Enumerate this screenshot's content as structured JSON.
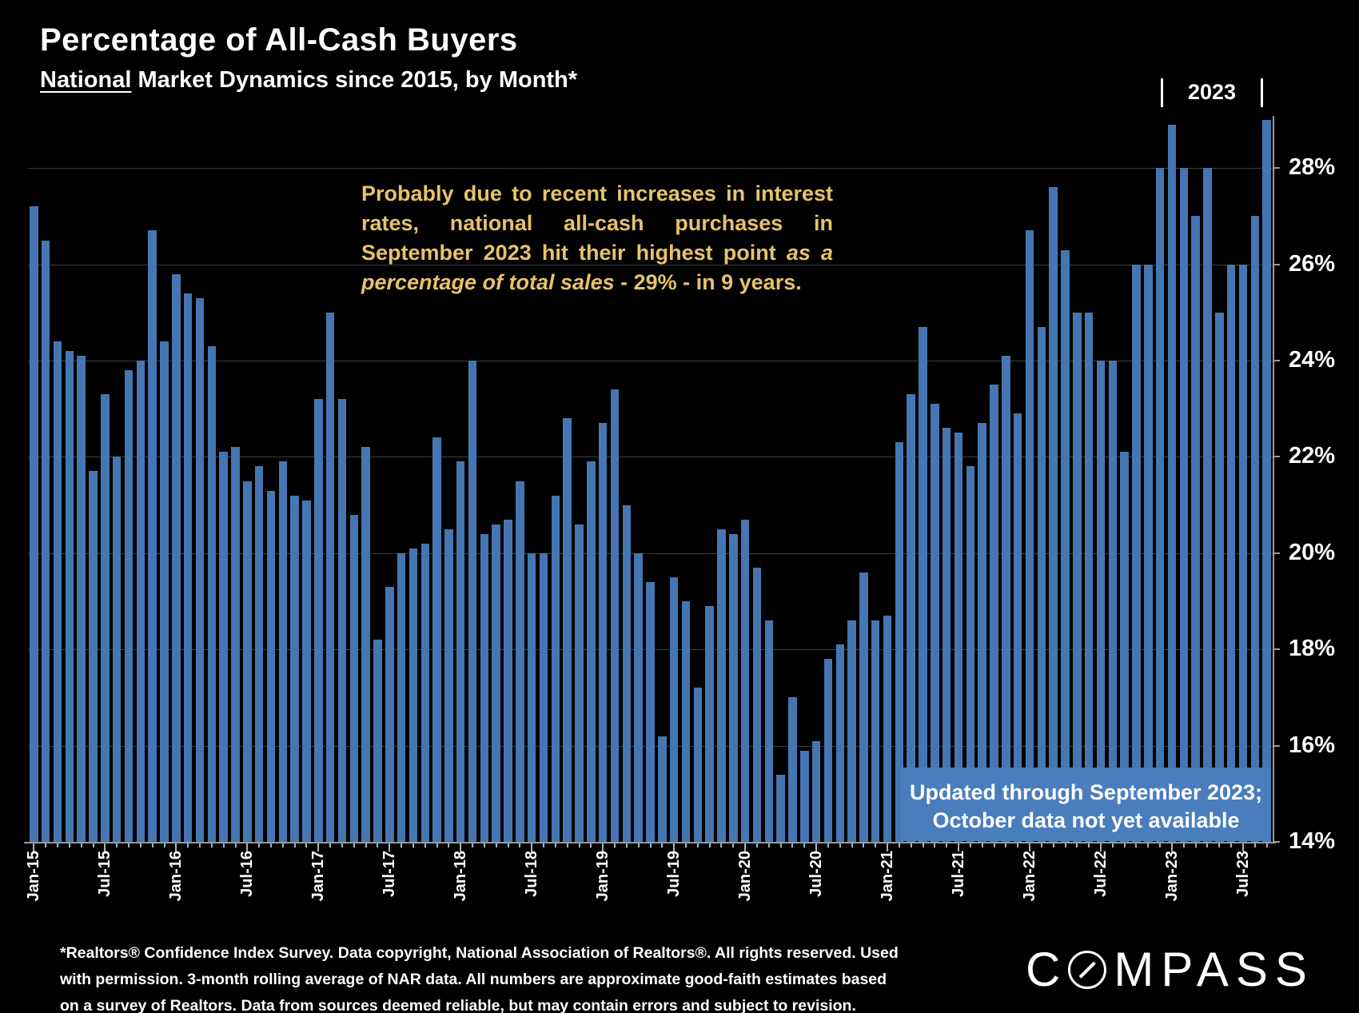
{
  "slide": {
    "title": "Percentage of All-Cash Buyers",
    "subtitle": {
      "underlined": "National",
      "rest": " Market Dynamics since 2015, by Month*"
    },
    "annotation": {
      "part1": "Probably due to recent increases in interest rates, national all-cash purchases in September 2023 hit their highest point ",
      "italic": "as a percentage of total sales",
      "part2": " - 29% - in 9 years."
    },
    "year_marker": "2023",
    "callout": {
      "line1": "Updated through September 2023;",
      "line2": "October data not yet available"
    },
    "footnote_lines": [
      "*Realtors® Confidence Index Survey. Data copyright, National Association of Realtors®. All rights reserved. Used",
      "with permission. 3-month rolling average of NAR data. All numbers are approximate good-faith estimates based",
      "on a survey of Realtors. Data from sources deemed reliable, but may contain errors and subject to revision."
    ],
    "logo": {
      "prefix": "C",
      "suffix": "MPASS",
      "full": "COMPASS"
    }
  },
  "colors": {
    "background": "#000000",
    "bar": "#4676b2",
    "callout_box": "#4a7dbd",
    "annotation_text": "#e6c369",
    "text": "#ffffff",
    "gridline": "#3f3f3f",
    "axis": "#9a9a9a"
  },
  "chart_data": {
    "type": "bar",
    "title": "Percentage of All-Cash Buyers",
    "xlabel": "",
    "ylabel": "",
    "ylim": [
      14,
      29.2
    ],
    "grid": "horizontal, every 2% from 16% to 28%",
    "legend": "none",
    "y_ticks": [
      {
        "value": 14,
        "label": "14%"
      },
      {
        "value": 16,
        "label": "16%"
      },
      {
        "value": 18,
        "label": "18%"
      },
      {
        "value": 20,
        "label": "20%"
      },
      {
        "value": 22,
        "label": "22%"
      },
      {
        "value": 24,
        "label": "24%"
      },
      {
        "value": 26,
        "label": "26%"
      },
      {
        "value": 28,
        "label": "28%"
      }
    ],
    "x_tick_every_n_months": 6,
    "categories": [
      "Jan-15",
      "Feb-15",
      "Mar-15",
      "Apr-15",
      "May-15",
      "Jun-15",
      "Jul-15",
      "Aug-15",
      "Sep-15",
      "Oct-15",
      "Nov-15",
      "Dec-15",
      "Jan-16",
      "Feb-16",
      "Mar-16",
      "Apr-16",
      "May-16",
      "Jun-16",
      "Jul-16",
      "Aug-16",
      "Sep-16",
      "Oct-16",
      "Nov-16",
      "Dec-16",
      "Jan-17",
      "Feb-17",
      "Mar-17",
      "Apr-17",
      "May-17",
      "Jun-17",
      "Jul-17",
      "Aug-17",
      "Sep-17",
      "Oct-17",
      "Nov-17",
      "Dec-17",
      "Jan-18",
      "Feb-18",
      "Mar-18",
      "Apr-18",
      "May-18",
      "Jun-18",
      "Jul-18",
      "Aug-18",
      "Sep-18",
      "Oct-18",
      "Nov-18",
      "Dec-18",
      "Jan-19",
      "Feb-19",
      "Mar-19",
      "Apr-19",
      "May-19",
      "Jun-19",
      "Jul-19",
      "Aug-19",
      "Sep-19",
      "Oct-19",
      "Nov-19",
      "Dec-19",
      "Jan-20",
      "Feb-20",
      "Mar-20",
      "Apr-20",
      "May-20",
      "Jun-20",
      "Jul-20",
      "Aug-20",
      "Sep-20",
      "Oct-20",
      "Nov-20",
      "Dec-20",
      "Jan-21",
      "Feb-21",
      "Mar-21",
      "Apr-21",
      "May-21",
      "Jun-21",
      "Jul-21",
      "Aug-21",
      "Sep-21",
      "Oct-21",
      "Nov-21",
      "Dec-21",
      "Jan-22",
      "Feb-22",
      "Mar-22",
      "Apr-22",
      "May-22",
      "Jun-22",
      "Jul-22",
      "Aug-22",
      "Sep-22",
      "Oct-22",
      "Nov-22",
      "Dec-22",
      "Jan-23",
      "Feb-23",
      "Mar-23",
      "Apr-23",
      "May-23",
      "Jun-23",
      "Jul-23",
      "Aug-23",
      "Sep-23"
    ],
    "values": [
      27.2,
      26.5,
      24.4,
      24.2,
      24.1,
      21.7,
      23.3,
      22.0,
      23.8,
      24.0,
      26.7,
      24.4,
      25.8,
      25.4,
      25.3,
      24.3,
      22.1,
      22.2,
      21.5,
      21.8,
      21.3,
      21.9,
      21.2,
      21.1,
      23.2,
      25.0,
      23.2,
      20.8,
      22.2,
      18.2,
      19.3,
      20.0,
      20.1,
      20.2,
      22.4,
      20.5,
      21.9,
      24.0,
      20.4,
      20.6,
      20.7,
      21.5,
      20.0,
      20.0,
      21.2,
      22.8,
      20.6,
      21.9,
      22.7,
      23.4,
      21.0,
      20.0,
      19.4,
      16.2,
      19.5,
      19.0,
      17.2,
      18.9,
      20.5,
      20.4,
      20.7,
      19.7,
      18.6,
      15.4,
      17.0,
      15.9,
      16.1,
      17.8,
      18.1,
      18.6,
      19.6,
      18.6,
      18.7,
      22.3,
      23.3,
      24.7,
      23.1,
      22.6,
      22.5,
      21.8,
      22.7,
      23.5,
      24.1,
      22.9,
      26.7,
      24.7,
      27.6,
      26.3,
      25.0,
      25.0,
      24.0,
      24.0,
      22.1,
      26.0,
      26.0,
      28.0,
      28.9,
      28.0,
      27.0,
      28.0,
      25.0,
      26.0,
      26.0,
      27.0,
      29.0
    ],
    "annotations": [
      "Probably due to recent increases in interest rates, national all-cash purchases in September 2023 hit their highest point as a percentage of total sales - 29% - in 9 years.",
      "Updated through September 2023; October data not yet available",
      "2023 bracket marker over the Jan-23 through Sep-23 bars"
    ]
  }
}
